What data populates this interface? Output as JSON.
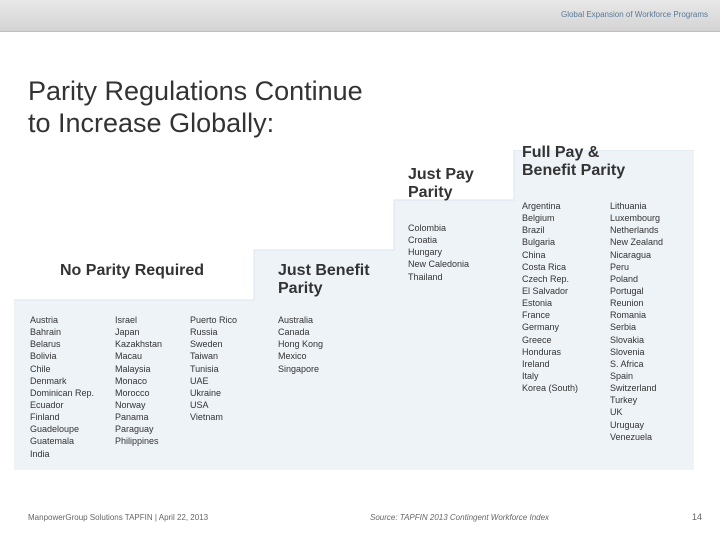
{
  "header_label": "Global Expansion of Workforce Programs",
  "title_line1": "Parity Regulations Continue",
  "title_line2": "to Increase Globally:",
  "columns": {
    "no_parity": {
      "heading": "No Parity Required",
      "col1": [
        "Austria",
        "Bahrain",
        "Belarus",
        "Bolivia",
        "Chile",
        "Denmark",
        "Dominican Rep.",
        "Ecuador",
        "Finland",
        "Guadeloupe",
        "Guatemala",
        "India"
      ],
      "col2": [
        "Israel",
        "Japan",
        "Kazakhstan",
        "Macau",
        "Malaysia",
        "Monaco",
        "Morocco",
        "Norway",
        "Panama",
        "Paraguay",
        "Philippines"
      ],
      "col3": [
        "Puerto Rico",
        "Russia",
        "Sweden",
        "Taiwan",
        "Tunisia",
        "UAE",
        "Ukraine",
        "USA",
        "Vietnam"
      ]
    },
    "just_benefit": {
      "heading": "Just Benefit Parity",
      "items": [
        "Australia",
        "Canada",
        "Hong Kong",
        "Mexico",
        "Singapore"
      ]
    },
    "just_pay": {
      "heading": "Just Pay Parity",
      "items": [
        "Colombia",
        "Croatia",
        "Hungary",
        "New Caledonia",
        "Thailand"
      ]
    },
    "full_pay": {
      "heading": "Full Pay & Benefit Parity",
      "col1": [
        "Argentina",
        "Belgium",
        "Brazil",
        "Bulgaria",
        "China",
        "Costa Rica",
        "Czech Rep.",
        "El Salvador",
        "Estonia",
        "France",
        "Germany",
        "Greece",
        "Honduras",
        "Ireland",
        "Italy",
        "Korea (South)"
      ],
      "col2": [
        "Lithuania",
        "Luxembourg",
        "Netherlands",
        "New Zealand",
        "Nicaragua",
        "Peru",
        "Poland",
        "Portugal",
        "Reunion",
        "Romania",
        "Serbia",
        "Slovakia",
        "Slovenia",
        "S. Africa",
        "Spain",
        "Switzerland",
        "Turkey",
        "UK",
        "Uruguay",
        "Venezuela"
      ]
    }
  },
  "footer_left": "ManpowerGroup Solutions TAPFIN | April 22, 2013",
  "source": "Source: TAPFIN 2013 Contingent Workforce Index",
  "page_num": "14",
  "steps_fill": "#eef3f8",
  "steps_stroke": "#dde6ef"
}
